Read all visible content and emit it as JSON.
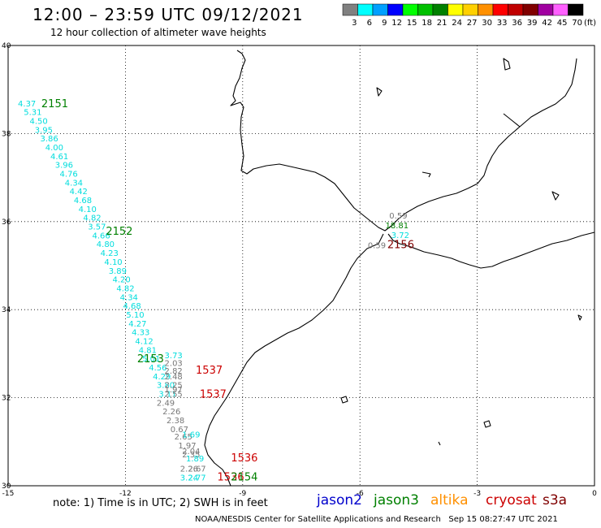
{
  "title": "12:00 – 23:59 UTC 09/12/2021",
  "subtitle": "12 hour collection of altimeter wave heights",
  "note": "note: 1) Time is in UTC; 2) SWH is in feet",
  "credit": "NOAA/NESDIS Center for Satellite Applications and Research",
  "timestamp": "Sep 15 08:27:47 UTC 2021",
  "legend": {
    "unit": "(ft)",
    "bins": [
      {
        "label": "3",
        "color": "#808080"
      },
      {
        "label": "6",
        "color": "#00ffff"
      },
      {
        "label": "9",
        "color": "#00a0ff"
      },
      {
        "label": "12",
        "color": "#0000ff"
      },
      {
        "label": "15",
        "color": "#00ff00"
      },
      {
        "label": "18",
        "color": "#00c000"
      },
      {
        "label": "21",
        "color": "#008000"
      },
      {
        "label": "24",
        "color": "#ffff00"
      },
      {
        "label": "27",
        "color": "#ffd000"
      },
      {
        "label": "30",
        "color": "#ff9000"
      },
      {
        "label": "33",
        "color": "#ff0000"
      },
      {
        "label": "36",
        "color": "#c00000"
      },
      {
        "label": "39",
        "color": "#800000"
      },
      {
        "label": "42",
        "color": "#a000a0"
      },
      {
        "label": "45",
        "color": "#ff60ff"
      },
      {
        "label": "70",
        "color": "#000000"
      }
    ]
  },
  "satellites": [
    {
      "name": "jason2",
      "color": "#0000cc"
    },
    {
      "name": "jason3",
      "color": "#008000"
    },
    {
      "name": "altika",
      "color": "#ff9000"
    },
    {
      "name": "cryosat",
      "color": "#cc0000"
    },
    {
      "name": "s3a",
      "color": "#800000"
    }
  ],
  "map": {
    "lon_range": [
      -15,
      0
    ],
    "lat_range": [
      30,
      40
    ],
    "lon_ticks": [
      -15,
      -12,
      -9,
      -6,
      -3,
      0
    ],
    "lat_ticks": [
      30,
      32,
      34,
      36,
      38,
      40
    ],
    "grid": "dotted"
  },
  "track_labels": [
    {
      "text": "2151",
      "lon": -14.15,
      "lat": 38.6,
      "color": "#008000"
    },
    {
      "text": "2152",
      "lon": -12.5,
      "lat": 35.7,
      "color": "#008000"
    },
    {
      "text": "2153",
      "lon": -11.7,
      "lat": 32.8,
      "color": "#008000"
    },
    {
      "text": "1537",
      "lon": -10.2,
      "lat": 32.55,
      "color": "#cc0000"
    },
    {
      "text": "1537",
      "lon": -10.1,
      "lat": 32.0,
      "color": "#cc0000"
    },
    {
      "text": "1536",
      "lon": -9.3,
      "lat": 30.55,
      "color": "#cc0000"
    },
    {
      "text": "1536",
      "lon": -9.65,
      "lat": 30.12,
      "color": "#cc0000"
    },
    {
      "text": "2154",
      "lon": -9.3,
      "lat": 30.12,
      "color": "#008000"
    },
    {
      "text": "2156",
      "lon": -5.3,
      "lat": 35.4,
      "color": "#800000"
    }
  ],
  "swh_points": [
    {
      "v": "4.37",
      "lon": -14.75,
      "lat": 38.62,
      "color": "#00dddd"
    },
    {
      "v": "5.31",
      "lon": -14.6,
      "lat": 38.42,
      "color": "#00dddd"
    },
    {
      "v": "4.50",
      "lon": -14.45,
      "lat": 38.22,
      "color": "#00dddd"
    },
    {
      "v": "3.95",
      "lon": -14.32,
      "lat": 38.02,
      "color": "#00dddd"
    },
    {
      "v": "3.86",
      "lon": -14.18,
      "lat": 37.82,
      "color": "#00dddd"
    },
    {
      "v": "4.00",
      "lon": -14.05,
      "lat": 37.62,
      "color": "#00dddd"
    },
    {
      "v": "4.61",
      "lon": -13.92,
      "lat": 37.42,
      "color": "#00dddd"
    },
    {
      "v": "3.96",
      "lon": -13.8,
      "lat": 37.22,
      "color": "#00dddd"
    },
    {
      "v": "4.76",
      "lon": -13.68,
      "lat": 37.02,
      "color": "#00dddd"
    },
    {
      "v": "4.34",
      "lon": -13.55,
      "lat": 36.82,
      "color": "#00dddd"
    },
    {
      "v": "4.42",
      "lon": -13.43,
      "lat": 36.62,
      "color": "#00dddd"
    },
    {
      "v": "4.68",
      "lon": -13.32,
      "lat": 36.42,
      "color": "#00dddd"
    },
    {
      "v": "4.10",
      "lon": -13.2,
      "lat": 36.22,
      "color": "#00dddd"
    },
    {
      "v": "4.82",
      "lon": -13.08,
      "lat": 36.02,
      "color": "#00dddd"
    },
    {
      "v": "3.57",
      "lon": -12.96,
      "lat": 35.82,
      "color": "#00dddd"
    },
    {
      "v": "4.66",
      "lon": -12.85,
      "lat": 35.62,
      "color": "#00dddd"
    },
    {
      "v": "4.80",
      "lon": -12.74,
      "lat": 35.42,
      "color": "#00dddd"
    },
    {
      "v": "4.23",
      "lon": -12.64,
      "lat": 35.22,
      "color": "#00dddd"
    },
    {
      "v": "4.10",
      "lon": -12.54,
      "lat": 35.02,
      "color": "#00dddd"
    },
    {
      "v": "3.89",
      "lon": -12.43,
      "lat": 34.82,
      "color": "#00dddd"
    },
    {
      "v": "4.20",
      "lon": -12.33,
      "lat": 34.62,
      "color": "#00dddd"
    },
    {
      "v": "4.82",
      "lon": -12.23,
      "lat": 34.42,
      "color": "#00dddd"
    },
    {
      "v": "4.34",
      "lon": -12.14,
      "lat": 34.22,
      "color": "#00dddd"
    },
    {
      "v": "4.68",
      "lon": -12.06,
      "lat": 34.02,
      "color": "#00dddd"
    },
    {
      "v": "5.10",
      "lon": -11.98,
      "lat": 33.82,
      "color": "#00dddd"
    },
    {
      "v": "4.27",
      "lon": -11.92,
      "lat": 33.62,
      "color": "#00dddd"
    },
    {
      "v": "4.33",
      "lon": -11.84,
      "lat": 33.42,
      "color": "#00dddd"
    },
    {
      "v": "4.12",
      "lon": -11.75,
      "lat": 33.22,
      "color": "#00dddd"
    },
    {
      "v": "4.81",
      "lon": -11.66,
      "lat": 33.02,
      "color": "#00dddd"
    },
    {
      "v": "5.01",
      "lon": -11.57,
      "lat": 32.82,
      "color": "#00dddd"
    },
    {
      "v": "4.56",
      "lon": -11.4,
      "lat": 32.62,
      "color": "#00dddd"
    },
    {
      "v": "4.29",
      "lon": -11.3,
      "lat": 32.42,
      "color": "#00dddd"
    },
    {
      "v": "3.80",
      "lon": -11.2,
      "lat": 32.22,
      "color": "#00dddd"
    },
    {
      "v": "3.11",
      "lon": -11.15,
      "lat": 32.02,
      "color": "#00dddd"
    },
    {
      "v": "3.73",
      "lon": -11.0,
      "lat": 32.9,
      "color": "#00dddd"
    },
    {
      "v": "2.03",
      "lon": -11.0,
      "lat": 32.72,
      "color": "#777777"
    },
    {
      "v": "2.82",
      "lon": -11.0,
      "lat": 32.55,
      "color": "#777777"
    },
    {
      "v": "2.48",
      "lon": -11.0,
      "lat": 32.42,
      "color": "#777777"
    },
    {
      "v": "2.25",
      "lon": -11.0,
      "lat": 32.22,
      "color": "#777777"
    },
    {
      "v": "1.97",
      "lon": -11.0,
      "lat": 32.12,
      "color": "#777777"
    },
    {
      "v": "2.55",
      "lon": -11.0,
      "lat": 32.02,
      "color": "#777777"
    },
    {
      "v": "2.49",
      "lon": -11.2,
      "lat": 31.82,
      "color": "#777777"
    },
    {
      "v": "2.26",
      "lon": -11.05,
      "lat": 31.62,
      "color": "#777777"
    },
    {
      "v": "2.38",
      "lon": -10.95,
      "lat": 31.42,
      "color": "#777777"
    },
    {
      "v": "0.67",
      "lon": -10.85,
      "lat": 31.22,
      "color": "#777777"
    },
    {
      "v": "2.65",
      "lon": -10.75,
      "lat": 31.05,
      "color": "#777777"
    },
    {
      "v": "1.69",
      "lon": -10.55,
      "lat": 31.1,
      "color": "#00dddd"
    },
    {
      "v": "1.97",
      "lon": -10.65,
      "lat": 30.85,
      "color": "#777777"
    },
    {
      "v": "2.04",
      "lon": -10.55,
      "lat": 30.72,
      "color": "#777777"
    },
    {
      "v": "2.35",
      "lon": -10.55,
      "lat": 30.65,
      "color": "#777777"
    },
    {
      "v": "1.89",
      "lon": -10.45,
      "lat": 30.55,
      "color": "#00dddd"
    },
    {
      "v": "2.26",
      "lon": -10.6,
      "lat": 30.32,
      "color": "#777777"
    },
    {
      "v": "2.67",
      "lon": -10.4,
      "lat": 30.32,
      "color": "#777777"
    },
    {
      "v": "3.24",
      "lon": -10.6,
      "lat": 30.12,
      "color": "#00dddd"
    },
    {
      "v": "2.77",
      "lon": -10.4,
      "lat": 30.12,
      "color": "#00dddd"
    },
    {
      "v": "0.59",
      "lon": -5.25,
      "lat": 36.07,
      "color": "#777777"
    },
    {
      "v": "18.81",
      "lon": -5.35,
      "lat": 35.85,
      "color": "#008000"
    },
    {
      "v": "3.72",
      "lon": -5.2,
      "lat": 35.63,
      "color": "#00dddd"
    },
    {
      "v": "0.59",
      "lon": -5.8,
      "lat": 35.4,
      "color": "#777777"
    }
  ]
}
